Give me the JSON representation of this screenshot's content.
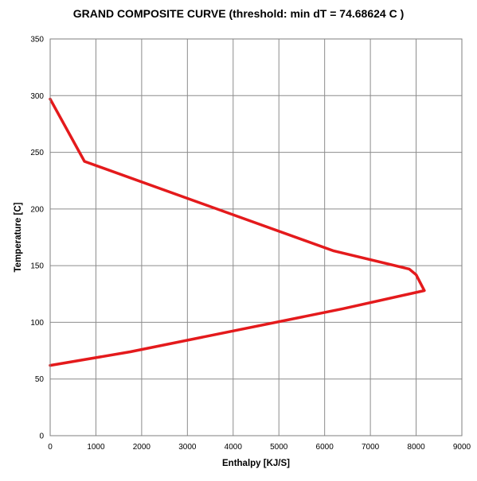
{
  "chart_data": {
    "type": "line",
    "title": "GRAND COMPOSITE CURVE   (threshold: min dT =  74.68624 C )",
    "xlabel": "Enthalpy  [KJ/S]",
    "ylabel": "Temperature  [C]",
    "xlim": [
      0,
      9000
    ],
    "ylim": [
      0,
      350
    ],
    "xticks": [
      0,
      1000,
      2000,
      3000,
      4000,
      5000,
      6000,
      7000,
      8000,
      9000
    ],
    "yticks": [
      0,
      50,
      100,
      150,
      200,
      250,
      300,
      350
    ],
    "grid": true,
    "legend": "none",
    "series": [
      {
        "color": "#e41a1c",
        "points": [
          [
            0,
            297
          ],
          [
            750,
            242
          ],
          [
            6200,
            163
          ],
          [
            7850,
            147
          ],
          [
            8000,
            142
          ],
          [
            8180,
            128
          ],
          [
            6400,
            112
          ],
          [
            1750,
            74
          ],
          [
            0,
            62
          ]
        ]
      }
    ]
  }
}
